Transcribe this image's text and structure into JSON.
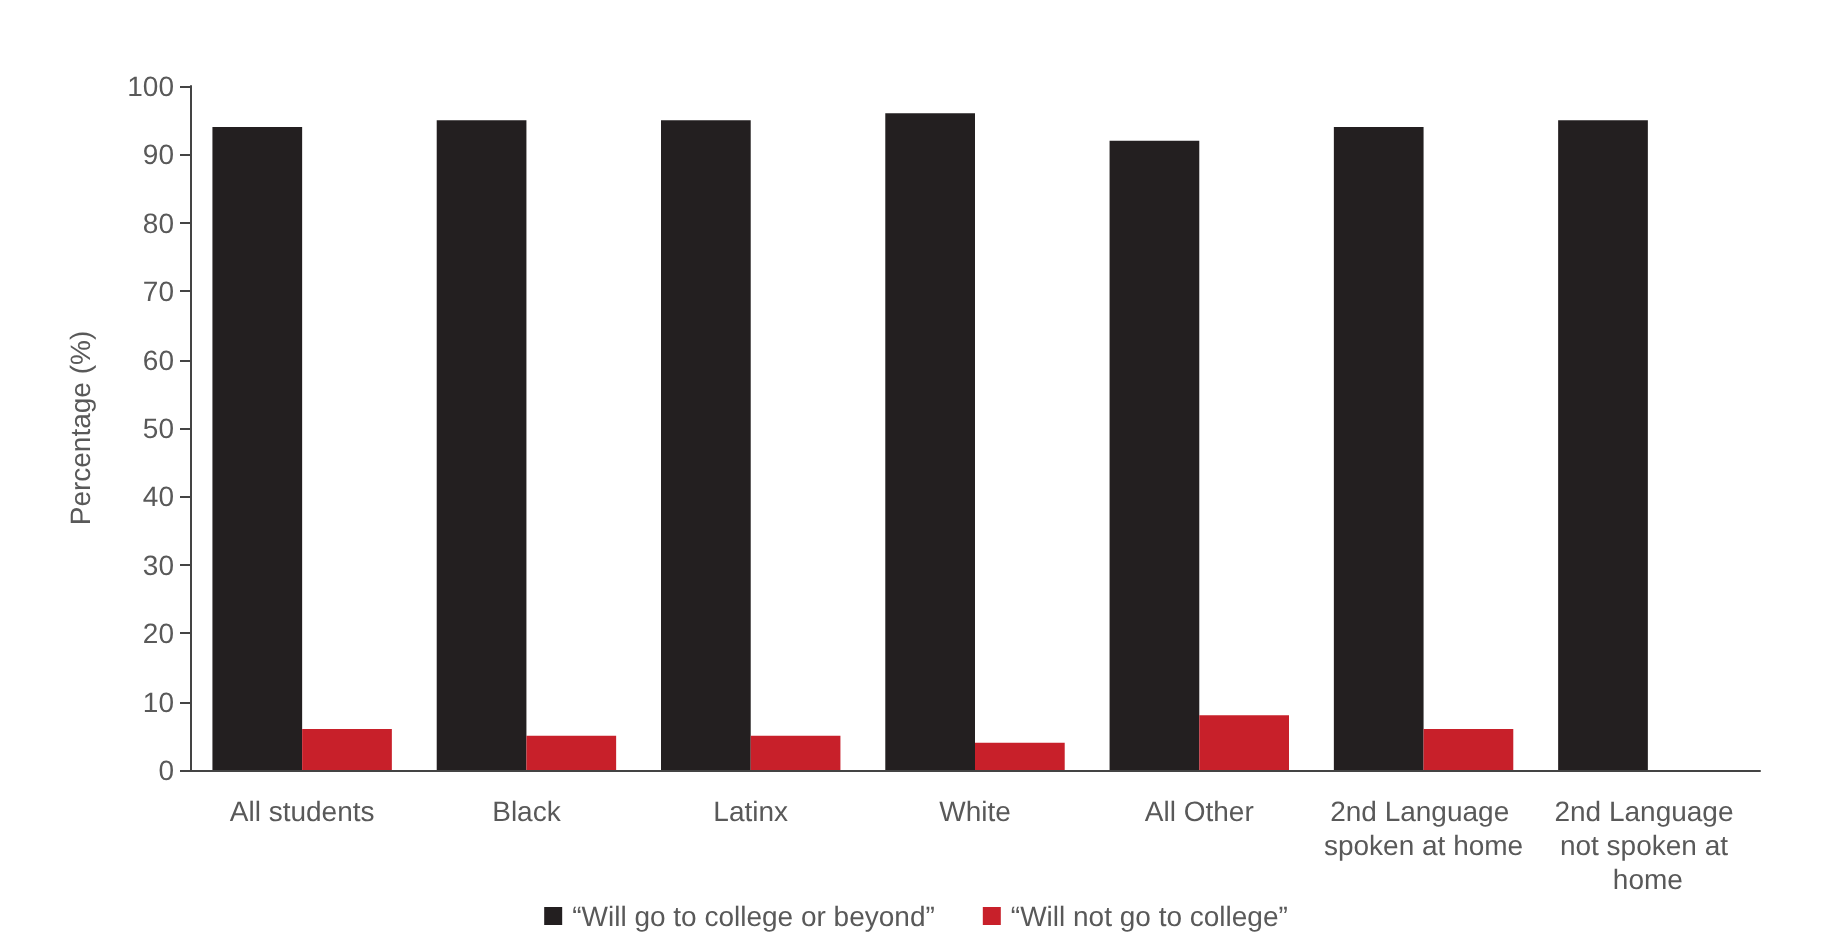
{
  "chart_data": {
    "type": "bar",
    "ylabel": "Percentage (%)",
    "categories": [
      "All students",
      "Black",
      "Latinx",
      "White",
      "All Other",
      "2nd Language spoken at home",
      "2nd Language not spoken at home"
    ],
    "series": [
      {
        "name": "“Will go to college or beyond”",
        "color": "#231f20",
        "values": [
          94,
          95,
          95,
          96,
          92,
          94,
          95
        ]
      },
      {
        "name": "“Will not go to college”",
        "color": "#c8202a",
        "values": [
          6,
          5,
          5,
          4,
          8,
          6,
          null
        ]
      }
    ],
    "ylim": [
      0,
      100
    ],
    "yticks": [
      0,
      10,
      20,
      30,
      40,
      50,
      60,
      70,
      80,
      90,
      100
    ],
    "grid": false,
    "legend": "bottom"
  }
}
